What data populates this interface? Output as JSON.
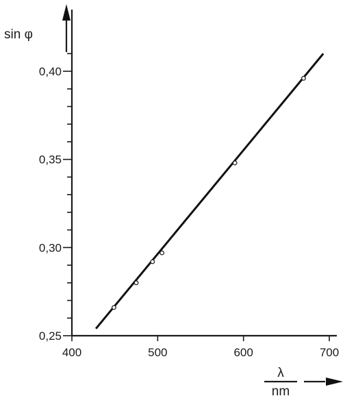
{
  "chart_data": {
    "type": "scatter",
    "title": "",
    "xlabel_num": "λ",
    "xlabel_den": "nm",
    "ylabel": "sin φ",
    "xlim": [
      400,
      700
    ],
    "ylim": [
      0.25,
      0.42
    ],
    "x_ticks": [
      400,
      500,
      600,
      700
    ],
    "x_tick_labels": [
      "400",
      "500",
      "600",
      "700"
    ],
    "y_ticks": [
      0.25,
      0.3,
      0.35,
      0.4
    ],
    "y_tick_labels": [
      "0,25",
      "0,30",
      "0,35",
      "0,40"
    ],
    "grid": false,
    "series": [
      {
        "x": [
          449,
          475,
          494,
          505,
          590,
          670
        ],
        "y": [
          0.266,
          0.28,
          0.292,
          0.297,
          0.348,
          0.396
        ]
      }
    ],
    "fit_line": {
      "x": [
        428,
        693
      ],
      "y": [
        0.254,
        0.41
      ]
    }
  }
}
